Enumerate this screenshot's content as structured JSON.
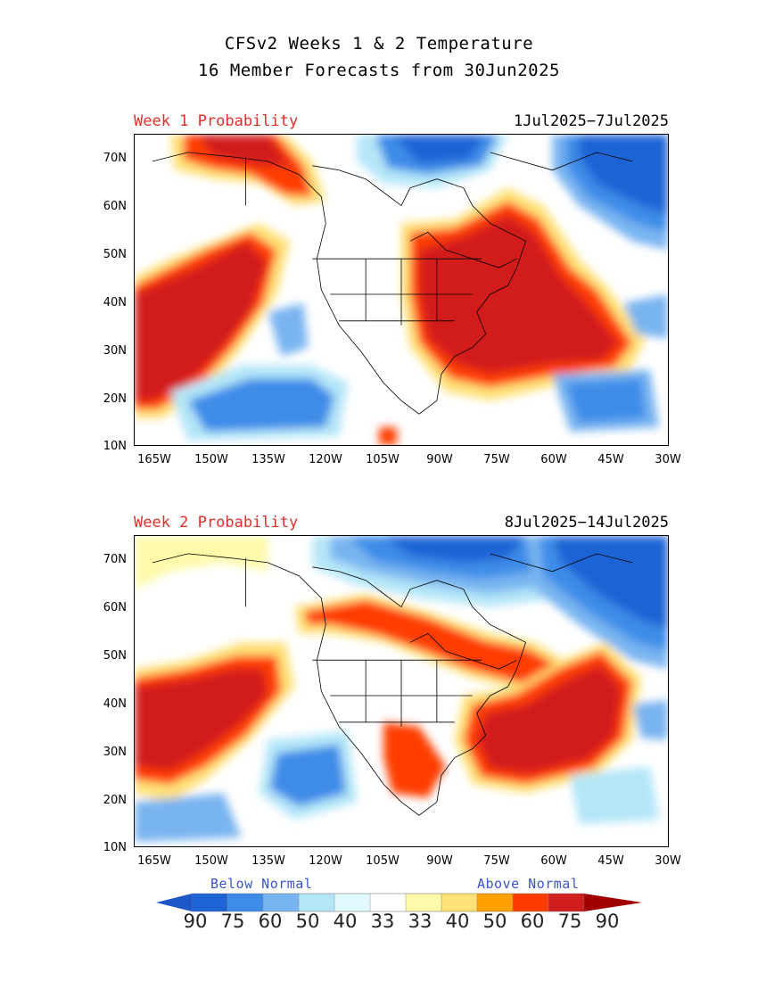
{
  "title": {
    "line1": "CFSv2 Weeks 1 & 2 Temperature",
    "line2": "16 Member Forecasts from 30Jun2025"
  },
  "panels": [
    {
      "label": "Week 1 Probability",
      "dates": "1Jul2025−7Jul2025"
    },
    {
      "label": "Week 2 Probability",
      "dates": "8Jul2025−14Jul2025"
    }
  ],
  "axes": {
    "lat_labels": [
      "70N",
      "60N",
      "50N",
      "40N",
      "30N",
      "20N",
      "10N"
    ],
    "lon_labels": [
      "165W",
      "150W",
      "135W",
      "120W",
      "105W",
      "90W",
      "75W",
      "60W",
      "45W",
      "30W"
    ],
    "lat_range": [
      10,
      75
    ],
    "lon_range": [
      -170,
      -30
    ]
  },
  "legend": {
    "below_label": "Below Normal",
    "above_label": "Above Normal",
    "below_values": [
      "90",
      "75",
      "60",
      "50",
      "40",
      "33"
    ],
    "above_values": [
      "33",
      "40",
      "50",
      "60",
      "75",
      "90"
    ],
    "below_colors": [
      "#1e64d4",
      "#3c8ce8",
      "#78b4f0",
      "#b4e6f8",
      "#e2fafe"
    ],
    "neutral_color": "#ffffff",
    "above_colors": [
      "#fffaaa",
      "#ffe178",
      "#ffa000",
      "#ff3c00",
      "#d21e1e"
    ],
    "arrow_low_color": "#1e55c8",
    "arrow_high_color": "#a00000"
  }
}
